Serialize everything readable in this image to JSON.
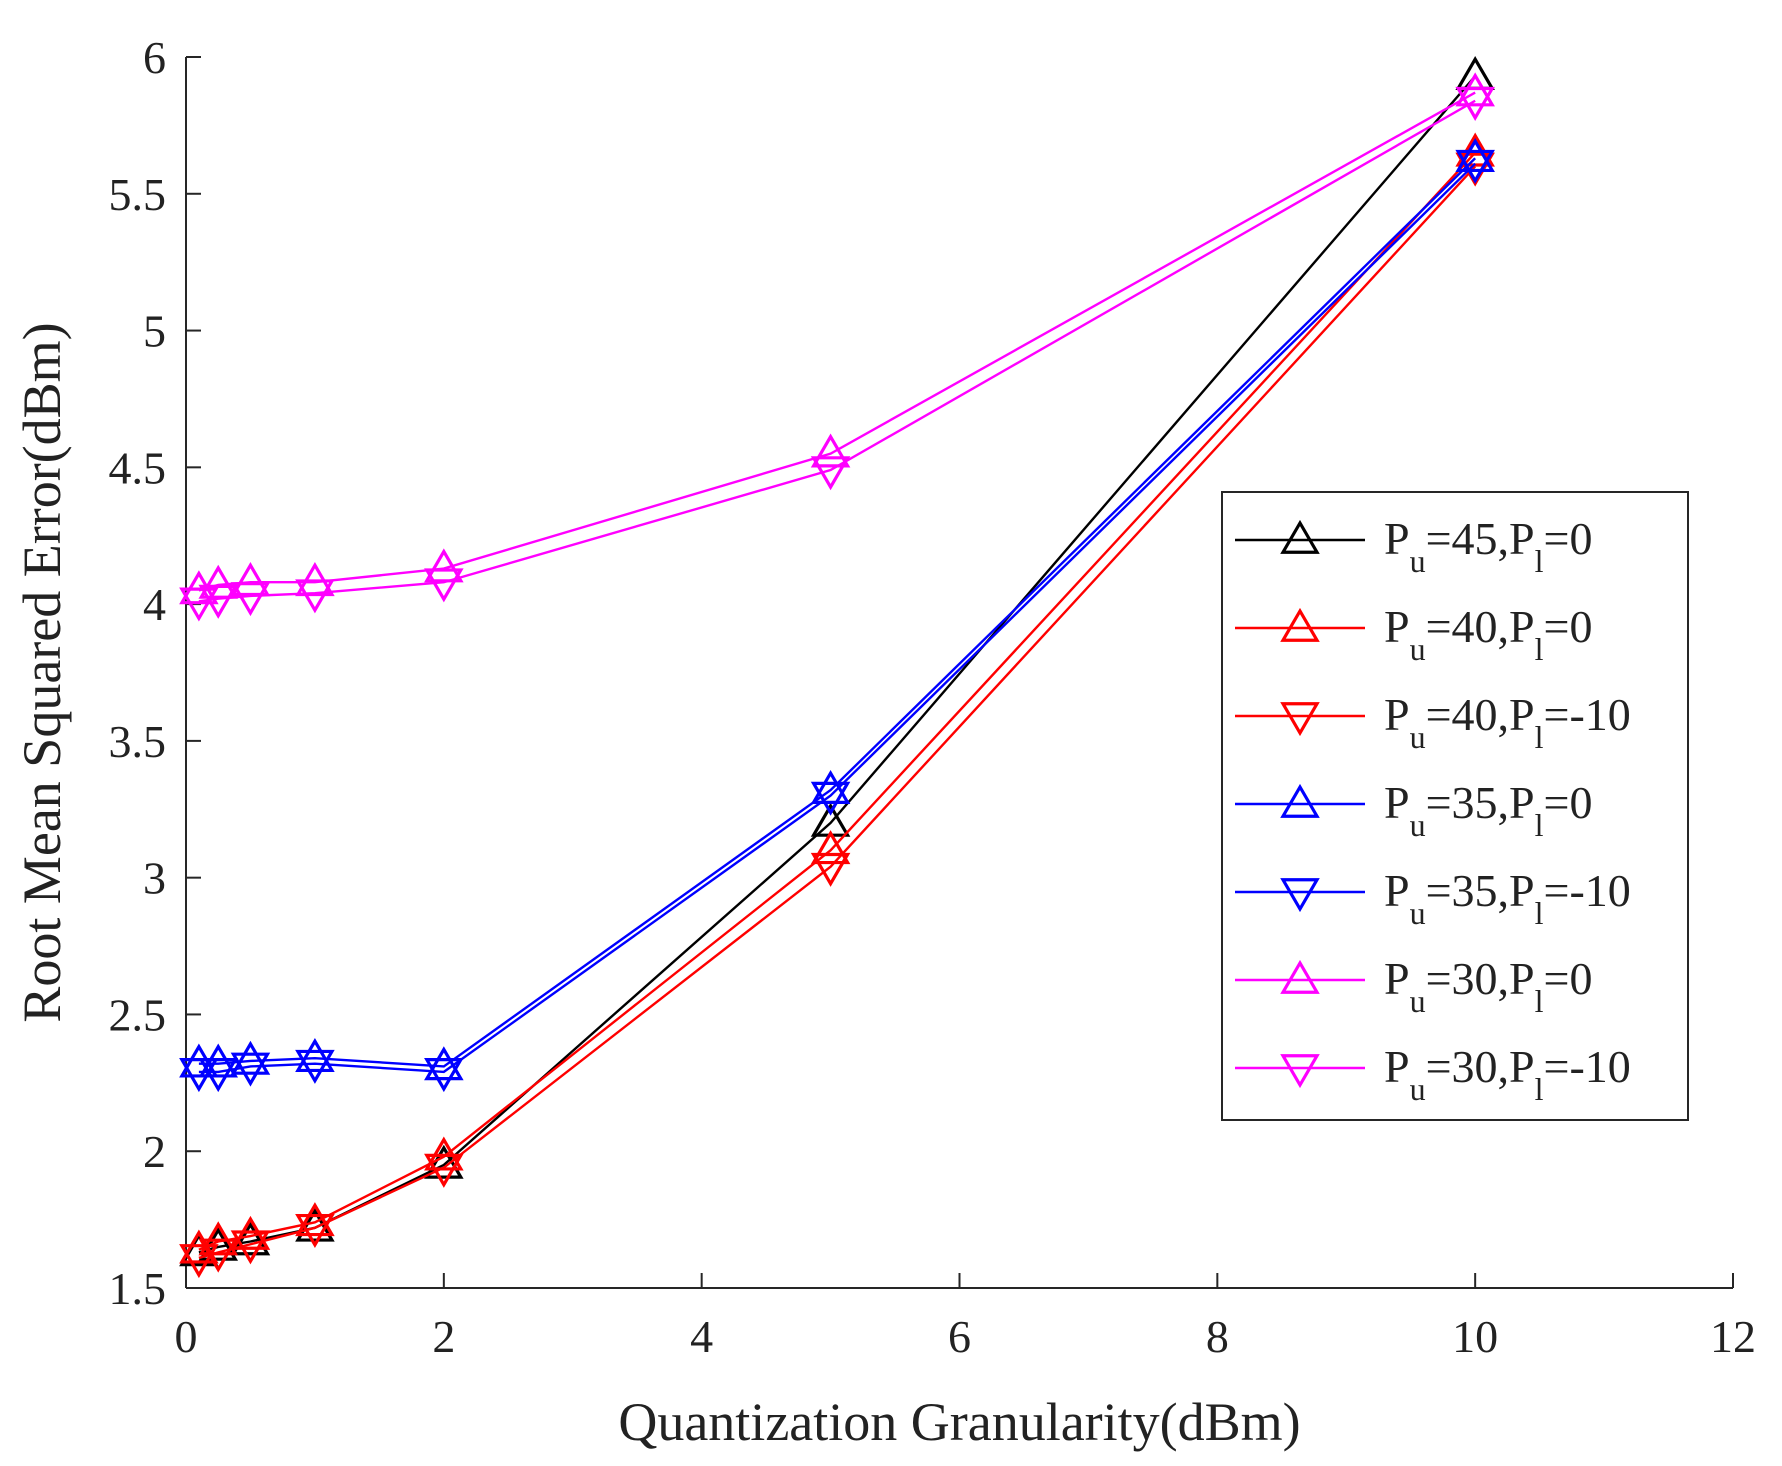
{
  "chart_data": {
    "type": "line",
    "title": "",
    "xlabel": "Quantization Granularity(dBm)",
    "ylabel": "Root Mean Squared Error(dBm)",
    "xlim": [
      0,
      12
    ],
    "ylim": [
      1.5,
      6
    ],
    "xticks": [
      "0",
      "2",
      "4",
      "6",
      "8",
      "10",
      "12"
    ],
    "yticks": [
      "1.5",
      "2",
      "2.5",
      "3",
      "3.5",
      "4",
      "4.5",
      "5",
      "5.5",
      "6"
    ],
    "grid": false,
    "legend_position": "right",
    "x": [
      0.1,
      0.25,
      0.5,
      1,
      2,
      5,
      10
    ],
    "series": [
      {
        "name": "Pu=45,Pl=0",
        "legend_parts": [
          "P",
          "u",
          "=45,P",
          "l",
          "=0"
        ],
        "color": "#000000",
        "marker": "triangle-up",
        "values": [
          1.63,
          1.65,
          1.67,
          1.72,
          1.95,
          3.2,
          5.93
        ]
      },
      {
        "name": "Pu=40,Pl=0",
        "legend_parts": [
          "P",
          "u",
          "=40,P",
          "l",
          "=0"
        ],
        "color": "#ff0000",
        "marker": "triangle-up",
        "values": [
          1.64,
          1.67,
          1.69,
          1.74,
          1.98,
          3.1,
          5.65
        ]
      },
      {
        "name": "Pu=40,Pl=-10",
        "legend_parts": [
          "P",
          "u",
          "=40,P",
          "l",
          "=-10"
        ],
        "color": "#ff0000",
        "marker": "triangle-down",
        "values": [
          1.61,
          1.63,
          1.66,
          1.72,
          1.94,
          3.04,
          5.6
        ]
      },
      {
        "name": "Pu=35,Pl=0",
        "legend_parts": [
          "P",
          "u",
          "=35,P",
          "l",
          "=0"
        ],
        "color": "#0000ff",
        "marker": "triangle-up",
        "values": [
          2.32,
          2.32,
          2.33,
          2.34,
          2.31,
          3.32,
          5.63
        ]
      },
      {
        "name": "Pu=35,Pl=-10",
        "legend_parts": [
          "P",
          "u",
          "=35,P",
          "l",
          "=-10"
        ],
        "color": "#0000ff",
        "marker": "triangle-down",
        "values": [
          2.29,
          2.29,
          2.31,
          2.32,
          2.29,
          3.3,
          5.61
        ]
      },
      {
        "name": "Pu=30,Pl=0",
        "legend_parts": [
          "P",
          "u",
          "=30,P",
          "l",
          "=0"
        ],
        "color": "#ff00ff",
        "marker": "triangle-up",
        "values": [
          4.05,
          4.07,
          4.08,
          4.08,
          4.13,
          4.55,
          5.87
        ]
      },
      {
        "name": "Pu=30,Pl=-10",
        "legend_parts": [
          "P",
          "u",
          "=30,P",
          "l",
          "=-10"
        ],
        "color": "#ff00ff",
        "marker": "triangle-down",
        "values": [
          4.01,
          4.02,
          4.03,
          4.04,
          4.08,
          4.49,
          5.84
        ]
      }
    ]
  }
}
